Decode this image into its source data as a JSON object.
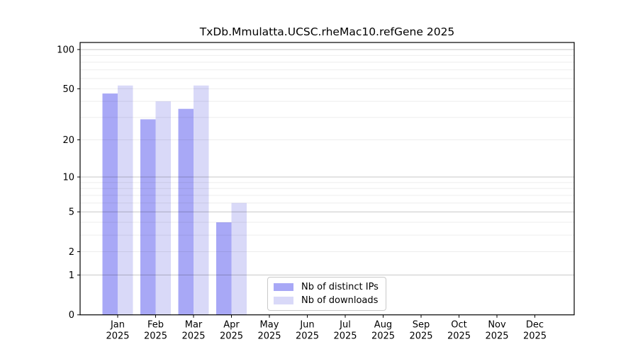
{
  "chart_data": {
    "type": "bar",
    "title": "TxDb.Mmulatta.UCSC.rheMac10.refGene 2025",
    "year_label": "2025",
    "categories": [
      "Jan",
      "Feb",
      "Mar",
      "Apr",
      "May",
      "Jun",
      "Jul",
      "Aug",
      "Sep",
      "Oct",
      "Nov",
      "Dec"
    ],
    "series": [
      {
        "name": "Nb of distinct IPs",
        "color": "#a8a8f6",
        "values": [
          46,
          29,
          35,
          4,
          null,
          null,
          null,
          null,
          null,
          null,
          null,
          null
        ]
      },
      {
        "name": "Nb of downloads",
        "color": "#d9d9f8",
        "values": [
          53,
          40,
          53,
          6,
          null,
          null,
          null,
          null,
          null,
          null,
          null,
          null
        ]
      }
    ],
    "yscale": "log1p",
    "yticks": [
      0,
      1,
      2,
      5,
      10,
      20,
      50,
      100
    ],
    "minor_gridline_values": [
      2,
      3,
      4,
      6,
      7,
      8,
      9,
      20,
      30,
      40,
      50,
      60,
      70,
      80,
      90
    ],
    "major_gridline_values": [
      1,
      5,
      10,
      100
    ],
    "ylim": [
      0,
      112
    ],
    "grid": "horizontal",
    "legend_position": "bottom-center",
    "colors": {
      "axis": "#000000",
      "major_grid": "rgba(0,0,0,0.22)",
      "minor_grid": "rgba(0,0,0,0.07)",
      "background": "#ffffff"
    }
  }
}
